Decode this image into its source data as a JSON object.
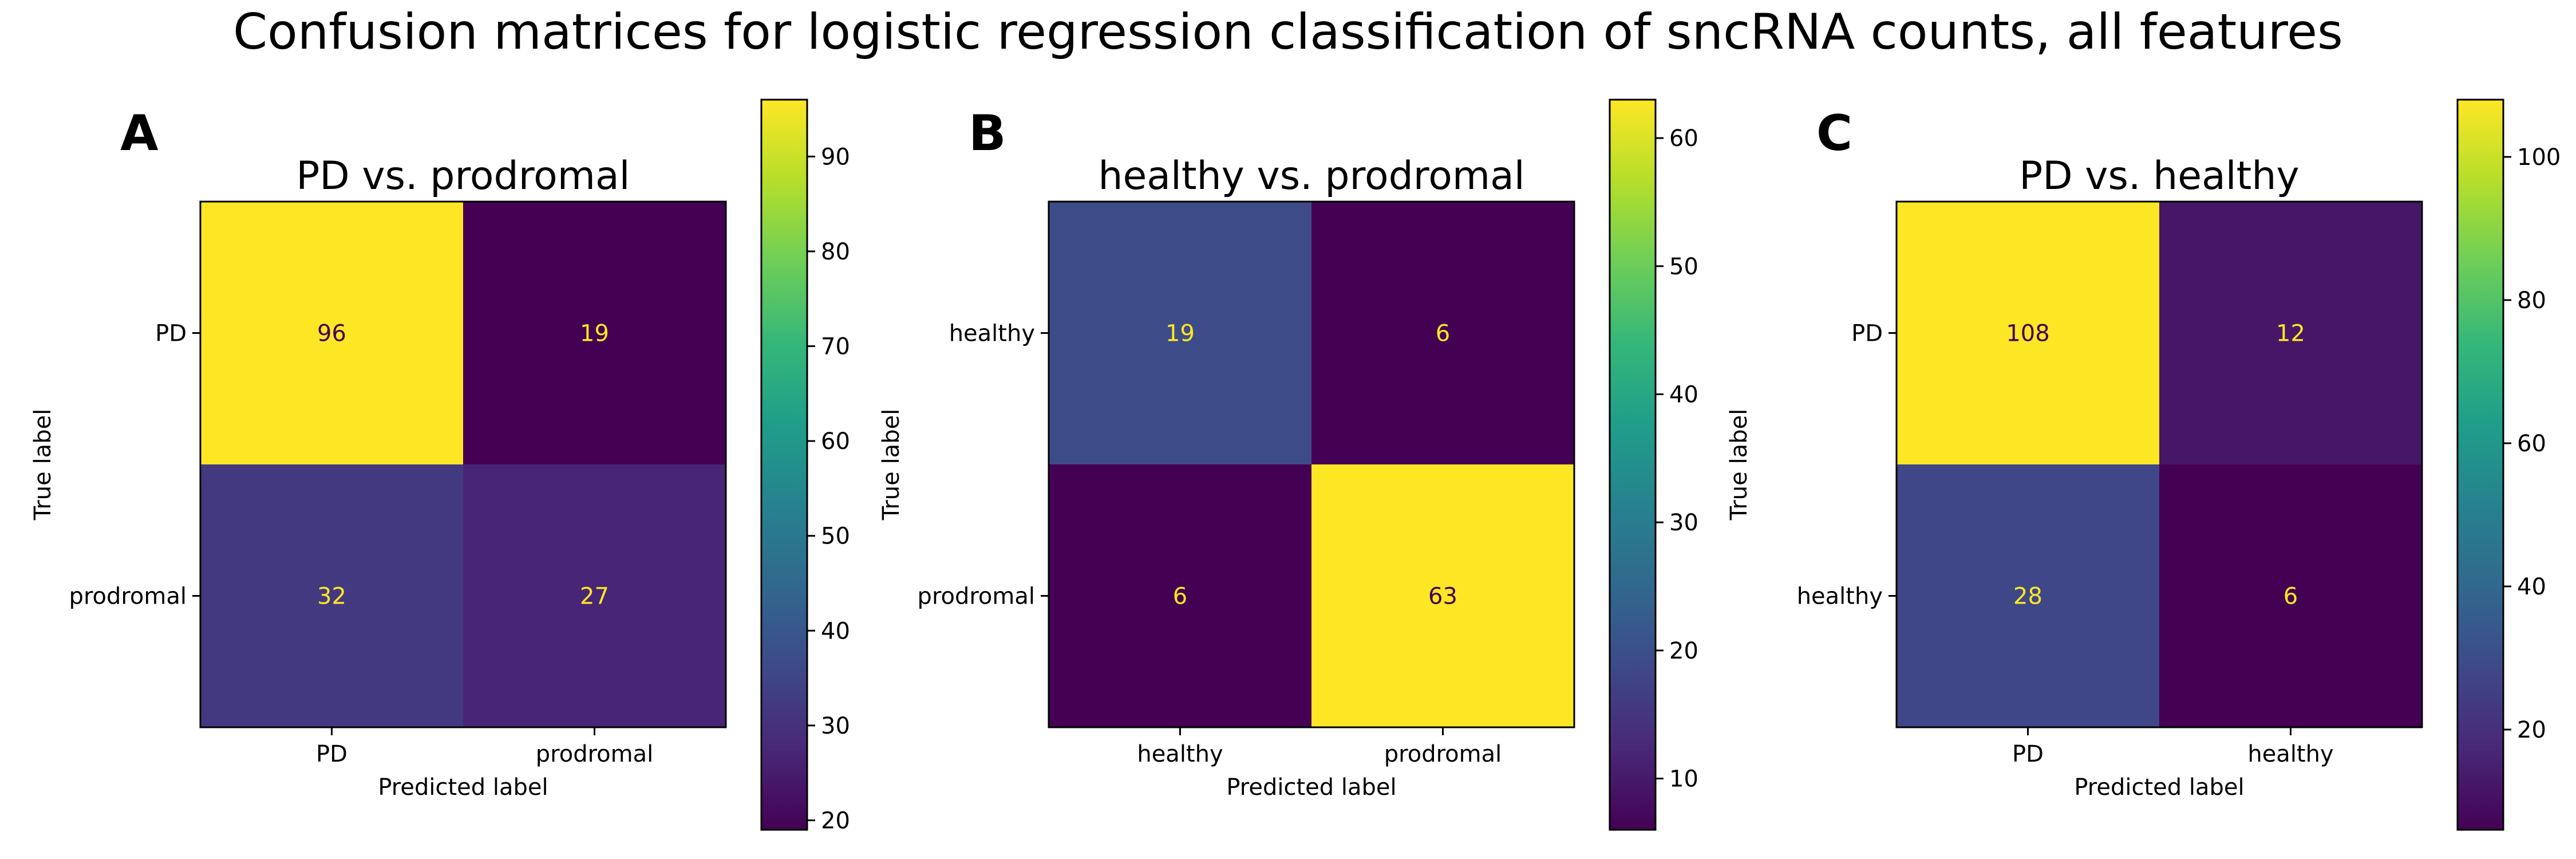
{
  "figure": {
    "title": "Confusion matrices for logistic regression classification of sncRNA counts, all features"
  },
  "chart_data": [
    {
      "type": "heatmap",
      "panel_letter": "A",
      "title": "PD vs. prodromal",
      "xlabel": "Predicted label",
      "ylabel": "True label",
      "x_categories": [
        "PD",
        "prodromal"
      ],
      "y_categories": [
        "PD",
        "prodromal"
      ],
      "values": [
        [
          96,
          19
        ],
        [
          32,
          27
        ]
      ],
      "colormap": "viridis",
      "vmin": 19,
      "vmax": 96,
      "colorbar_ticks": [
        20,
        30,
        40,
        50,
        60,
        70,
        80,
        90
      ],
      "grid": false
    },
    {
      "type": "heatmap",
      "panel_letter": "B",
      "title": "healthy vs. prodromal",
      "xlabel": "Predicted label",
      "ylabel": "True label",
      "x_categories": [
        "healthy",
        "prodromal"
      ],
      "y_categories": [
        "healthy",
        "prodromal"
      ],
      "values": [
        [
          19,
          6
        ],
        [
          6,
          63
        ]
      ],
      "colormap": "viridis",
      "vmin": 6,
      "vmax": 63,
      "colorbar_ticks": [
        10,
        20,
        30,
        40,
        50,
        60
      ],
      "grid": false
    },
    {
      "type": "heatmap",
      "panel_letter": "C",
      "title": "PD vs. healthy",
      "xlabel": "Predicted label",
      "ylabel": "True label",
      "x_categories": [
        "PD",
        "healthy"
      ],
      "y_categories": [
        "PD",
        "healthy"
      ],
      "values": [
        [
          108,
          12
        ],
        [
          28,
          6
        ]
      ],
      "colormap": "viridis",
      "vmin": 6,
      "vmax": 108,
      "colorbar_ticks": [
        20,
        40,
        60,
        80,
        100
      ],
      "grid": false
    }
  ]
}
